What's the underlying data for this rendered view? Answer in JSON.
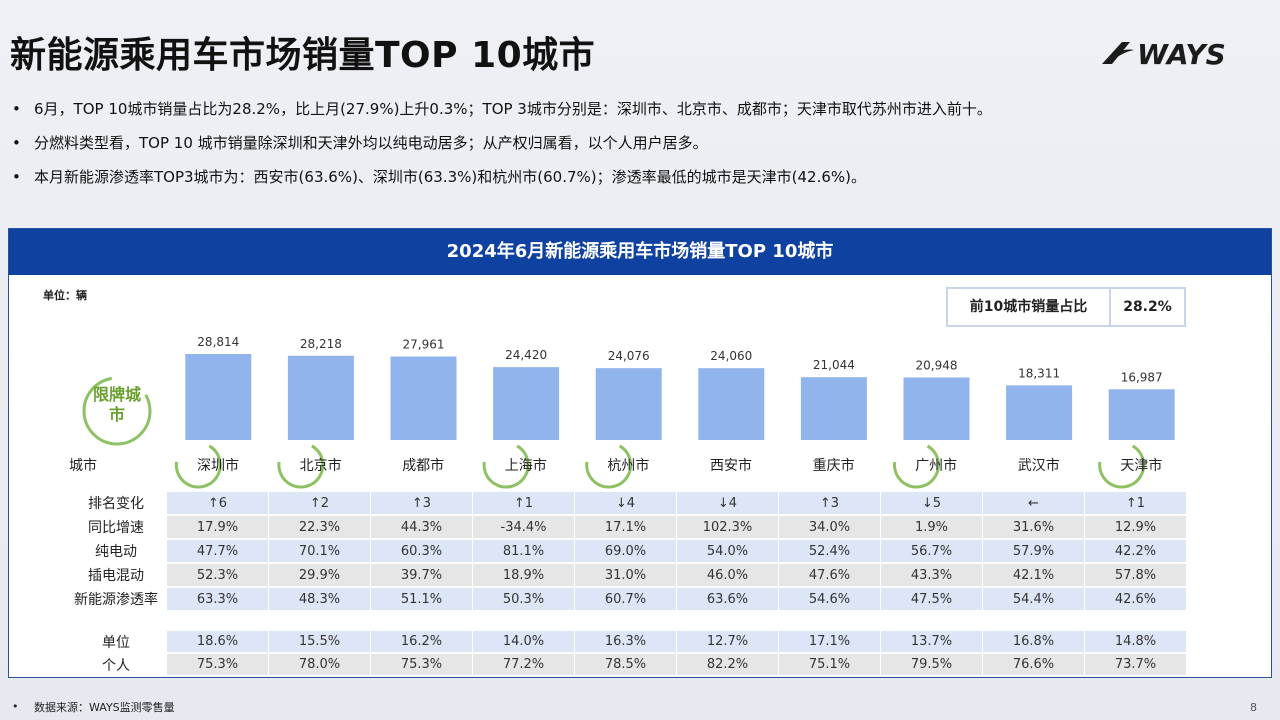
{
  "title": "新能源乘用车市场销量TOP 10城市",
  "logo_text": "WAYS",
  "bullets": [
    "6月，TOP 10城市销量占比为28.2%，比上月(27.9%)上升0.3%；TOP 3城市分别是：深圳市、北京市、成都市；天津市取代苏州市进入前十。",
    "分燃料类型看，TOP 10 城市销量除深圳和天津外均以纯电动居多；从产权归属看，以个人用户居多。",
    "本月新能源渗透率TOP3城市为：西安市(63.6%)、深圳市(63.3%)和杭州市(60.7%)；渗透率最低的城市是天津市(42.6%)。"
  ],
  "panel_title": "2024年6月新能源乘用车市场销量TOP 10城市",
  "unit_label": "单位：辆",
  "share": {
    "label": "前10城市销量占比",
    "value": "28.2%"
  },
  "xianpai_label": "限牌城市",
  "city_row_label": "城市",
  "colors": {
    "bar": "#92b4ec",
    "header": "#0f41a0",
    "ring": "#8dc163",
    "ring_text": "#6aa02f"
  },
  "chart_data": {
    "type": "bar",
    "title": "2024年6月新能源乘用车市场销量TOP 10城市",
    "xlabel": "城市",
    "ylabel": "",
    "categories": [
      "深圳市",
      "北京市",
      "成都市",
      "上海市",
      "杭州市",
      "西安市",
      "重庆市",
      "广州市",
      "武汉市",
      "天津市"
    ],
    "values": [
      28814,
      28218,
      27961,
      24420,
      24076,
      24060,
      21044,
      20948,
      18311,
      16987
    ],
    "value_labels": [
      "28,814",
      "28,218",
      "27,961",
      "24,420",
      "24,076",
      "24,060",
      "21,044",
      "20,948",
      "18,311",
      "16,987"
    ],
    "restricted_plate": [
      true,
      true,
      false,
      true,
      true,
      false,
      false,
      true,
      false,
      true
    ]
  },
  "metrics": [
    {
      "label": "排名变化",
      "style": "blue",
      "values": [
        "↑6",
        "↑2",
        "↑3",
        "↑1",
        "↓4",
        "↓4",
        "↑3",
        "↓5",
        "←",
        "↑1"
      ]
    },
    {
      "label": "同比增速",
      "style": "gray",
      "values": [
        "17.9%",
        "22.3%",
        "44.3%",
        "-34.4%",
        "17.1%",
        "102.3%",
        "34.0%",
        "1.9%",
        "31.6%",
        "12.9%"
      ]
    },
    {
      "label": "纯电动",
      "style": "blue",
      "values": [
        "47.7%",
        "70.1%",
        "60.3%",
        "81.1%",
        "69.0%",
        "54.0%",
        "52.4%",
        "56.7%",
        "57.9%",
        "42.2%"
      ]
    },
    {
      "label": "插电混动",
      "style": "gray",
      "values": [
        "52.3%",
        "29.9%",
        "39.7%",
        "18.9%",
        "31.0%",
        "46.0%",
        "47.6%",
        "43.3%",
        "42.1%",
        "57.8%"
      ]
    },
    {
      "label": "新能源渗透率",
      "style": "blue",
      "values": [
        "63.3%",
        "48.3%",
        "51.1%",
        "50.3%",
        "60.7%",
        "63.6%",
        "54.6%",
        "47.5%",
        "54.4%",
        "42.6%"
      ]
    }
  ],
  "ownership": [
    {
      "label": "单位",
      "style": "blue",
      "values": [
        "18.6%",
        "15.5%",
        "16.2%",
        "14.0%",
        "16.3%",
        "12.7%",
        "17.1%",
        "13.7%",
        "16.8%",
        "14.8%"
      ]
    },
    {
      "label": "个人",
      "style": "gray",
      "values": [
        "75.3%",
        "78.0%",
        "75.3%",
        "77.2%",
        "78.5%",
        "82.2%",
        "75.1%",
        "79.5%",
        "76.6%",
        "73.7%"
      ]
    }
  ],
  "footer": "数据来源：WAYS监测零售量",
  "page_number": "8"
}
